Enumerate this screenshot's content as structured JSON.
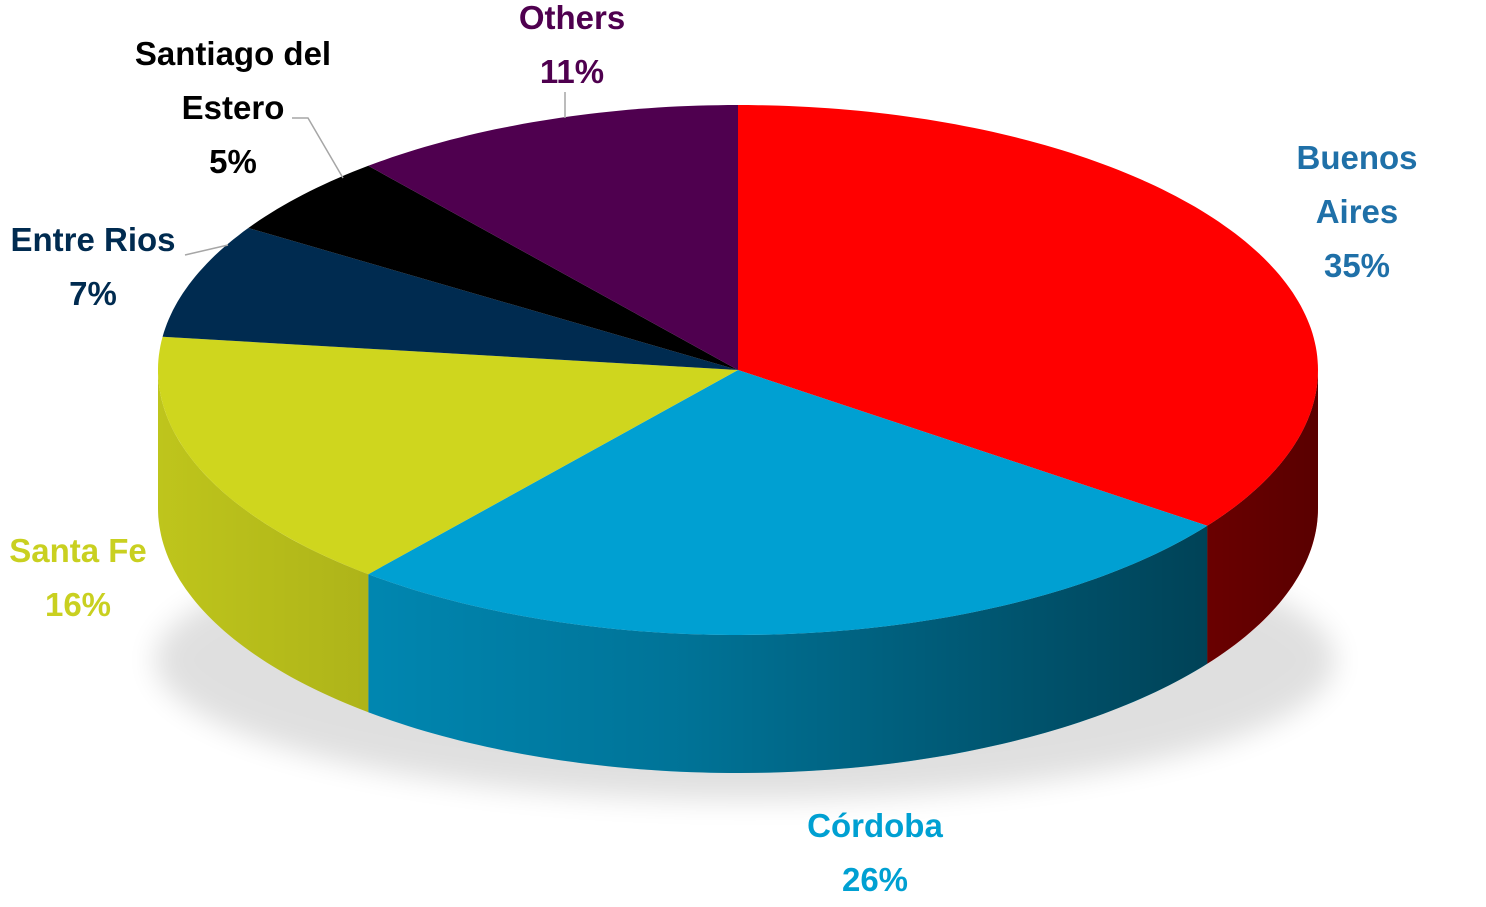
{
  "chart_data": {
    "type": "pie3d",
    "categories": [
      "Buenos Aires",
      "Córdoba",
      "Santa Fe",
      "Entre Rios",
      "Santiago del Estero",
      "Others"
    ],
    "values": [
      35,
      26,
      16,
      7,
      5,
      11
    ],
    "value_labels": [
      "35%",
      "26%",
      "16%",
      "7%",
      "5%",
      "11%"
    ],
    "colors": [
      "#ff0000",
      "#00a0d2",
      "#cfd61e",
      "#002b50",
      "#000000",
      "#4f004f"
    ],
    "label_colors": [
      "#1f70a8",
      "#00a0d2",
      "#c9d020",
      "#002b50",
      "#000000",
      "#4f004f"
    ]
  }
}
